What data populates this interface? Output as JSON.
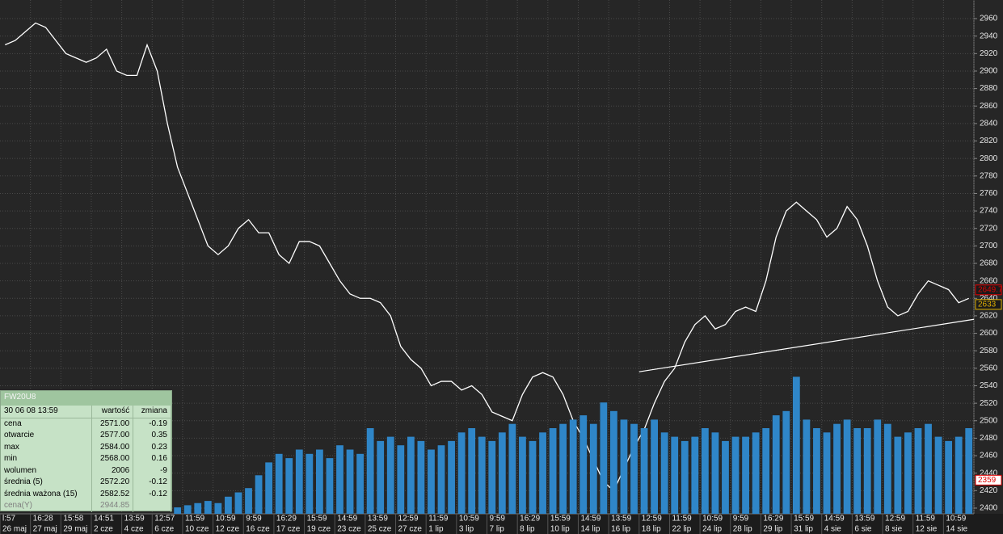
{
  "chart_data": {
    "type": "line",
    "x_labels_time": [
      "l:57",
      "16:28",
      "15:58",
      "14:51",
      "13:59",
      "12:57",
      "11:59",
      "10:59",
      "9:59",
      "16:29",
      "15:59",
      "14:59",
      "13:59",
      "12:59",
      "11:59",
      "10:59",
      "9:59",
      "16:29",
      "15:59",
      "14:59",
      "13:59",
      "12:59",
      "11:59",
      "10:59",
      "9:59",
      "16:29",
      "15:59",
      "14:59",
      "13:59",
      "12:59",
      "11:59",
      "10:59"
    ],
    "x_labels_date": [
      "26 maj",
      "27 maj",
      "29 maj",
      "2 cze",
      "4 cze",
      "6 cze",
      "10 cze",
      "12 cze",
      "16 cze",
      "17 cze",
      "19 cze",
      "23 cze",
      "25 cze",
      "27 cze",
      "1 lip",
      "3 lip",
      "7 lip",
      "8 lip",
      "10 lip",
      "14 lip",
      "16 lip",
      "18 lip",
      "22 lip",
      "24 lip",
      "28 lip",
      "29 lip",
      "31 lip",
      "4 sie",
      "6 sie",
      "8 sie",
      "12 sie",
      "14 sie"
    ],
    "series": [
      {
        "name": "cena",
        "color": "#ffffff",
        "values": [
          2930,
          2935,
          2945,
          2955,
          2950,
          2935,
          2920,
          2915,
          2910,
          2915,
          2925,
          2900,
          2895,
          2895,
          2930,
          2900,
          2840,
          2790,
          2760,
          2730,
          2700,
          2690,
          2700,
          2720,
          2730,
          2715,
          2715,
          2690,
          2680,
          2705,
          2705,
          2700,
          2680,
          2660,
          2645,
          2640,
          2640,
          2635,
          2620,
          2585,
          2570,
          2560,
          2540,
          2545,
          2545,
          2535,
          2540,
          2530,
          2510,
          2505,
          2500,
          2530,
          2550,
          2555,
          2550,
          2530,
          2500,
          2480,
          2455,
          2430,
          2420,
          2445,
          2470,
          2490,
          2520,
          2545,
          2560,
          2590,
          2610,
          2620,
          2605,
          2610,
          2625,
          2630,
          2625,
          2660,
          2710,
          2740,
          2750,
          2740,
          2730,
          2710,
          2720,
          2745,
          2730,
          2700,
          2660,
          2630,
          2620,
          2625,
          2645,
          2660,
          2655,
          2650,
          2635,
          2640
        ]
      },
      {
        "name": "wolumen",
        "color": "#2f86c8",
        "axis": "y2",
        "values": [
          0,
          0,
          0,
          0,
          0,
          0,
          0,
          0,
          0,
          0,
          0,
          0,
          0,
          0,
          0,
          0,
          0,
          450,
          600,
          750,
          900,
          750,
          1200,
          1500,
          1800,
          2700,
          3600,
          4200,
          3900,
          4500,
          4200,
          4500,
          3900,
          4800,
          4500,
          4200,
          6000,
          5100,
          5400,
          4800,
          5400,
          5100,
          4500,
          4800,
          5100,
          5700,
          6000,
          5400,
          5100,
          5700,
          6300,
          5400,
          5100,
          5700,
          6000,
          6300,
          6600,
          6900,
          6300,
          7800,
          7200,
          6600,
          6300,
          6000,
          6600,
          5700,
          5400,
          5100,
          5400,
          6000,
          5700,
          5100,
          5400,
          5400,
          5700,
          6000,
          6900,
          7200,
          9600,
          6600,
          6000,
          5700,
          6300,
          6600,
          6000,
          6000,
          6600,
          6300,
          5400,
          5700,
          6000,
          6300,
          5400,
          5100,
          5400,
          6000
        ]
      }
    ],
    "ylim": [
      2393.5,
      2981.3
    ],
    "yticks": [
      2400,
      2420,
      2440,
      2460,
      2480,
      2500,
      2520,
      2540,
      2560,
      2580,
      2600,
      2620,
      2640,
      2660,
      2680,
      2700,
      2720,
      2740,
      2760,
      2780,
      2800,
      2820,
      2840,
      2860,
      2880,
      2900,
      2920,
      2940,
      2960
    ],
    "y2lim": [
      0,
      36000
    ],
    "grid": true,
    "trendline": {
      "x": [
        62.5,
        95.5
      ],
      "y": [
        2556,
        2616
      ],
      "color": "#ffffff"
    },
    "markers": [
      {
        "value": 2649.7,
        "label": "2649.70",
        "color": "#e00000"
      },
      {
        "value": 2633,
        "label": "2633",
        "color": "#e0b000"
      }
    ],
    "volume_marker": 2359
  },
  "info_panel": {
    "title": "FW20U8",
    "header": [
      "30 06 08 13:59",
      "wartość",
      "zmiana"
    ],
    "rows": [
      [
        "cena",
        "2571.00",
        "-0.19"
      ],
      [
        "otwarcie",
        "2577.00",
        "0.35"
      ],
      [
        "max",
        "2584.00",
        "0.23"
      ],
      [
        "min",
        "2568.00",
        "0.16"
      ],
      [
        "wolumen",
        "2006",
        "-9"
      ],
      [
        "średnia (5)",
        "2572.20",
        "-0.12"
      ],
      [
        "średnia ważona (15)",
        "2582.52",
        "-0.12"
      ],
      [
        "cena(Y)",
        "2944.85"
      ]
    ]
  }
}
